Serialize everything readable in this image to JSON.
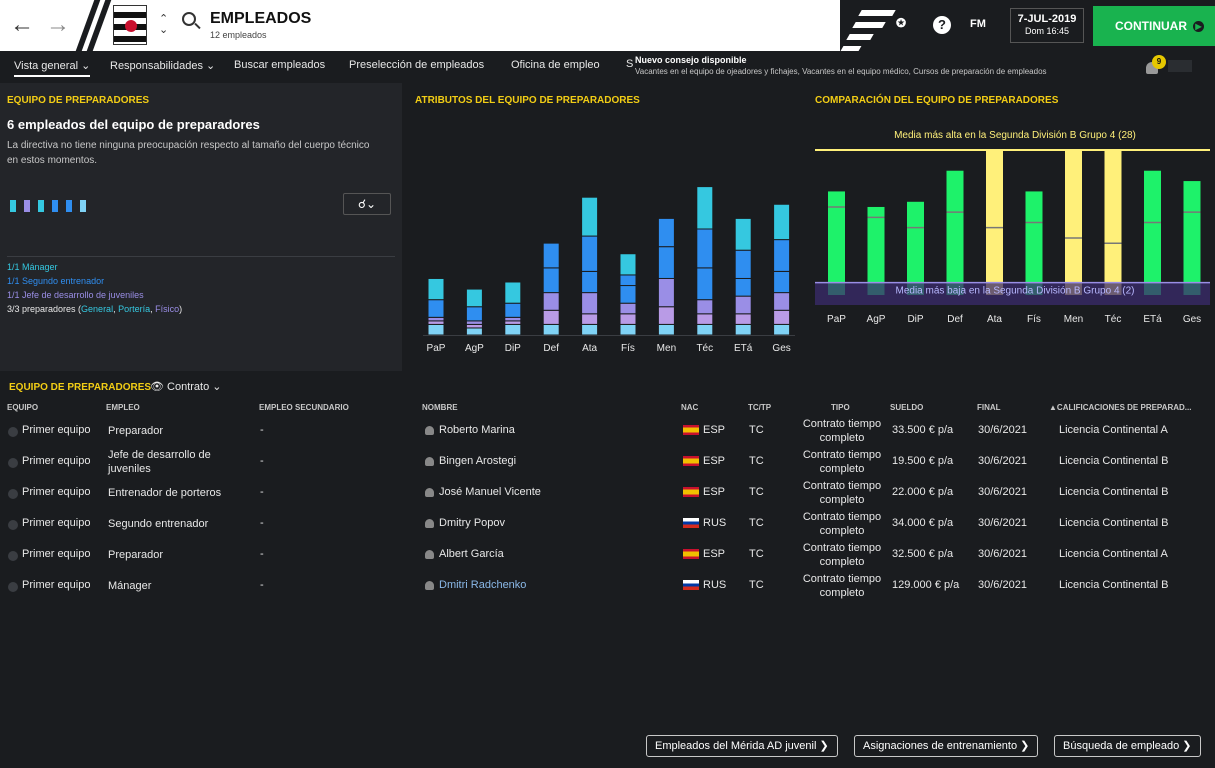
{
  "header": {
    "title": "EMPLEADOS",
    "subtitle": "12 empleados",
    "date": "7-JUL-2019",
    "time": "Dom 16:45",
    "fm_label": "FM",
    "continue_label": "CONTINUAR"
  },
  "tabs": [
    {
      "label": "Vista general",
      "dropdown": true
    },
    {
      "label": "Responsabilidades",
      "dropdown": true
    },
    {
      "label": "Buscar empleados"
    },
    {
      "label": "Preselección de empleados"
    },
    {
      "label": "Oficina de empleo"
    },
    {
      "label": "S"
    }
  ],
  "tip": {
    "title": "Nuevo consejo disponible",
    "text": "Vacantes en el equipo de ojeadores y fichajes, Vacantes en el equipo médico, Cursos de preparación de empleados",
    "count": "9"
  },
  "staff_panel": {
    "heading": "EQUIPO DE PREPARADORES",
    "title": "6 empleados del equipo de preparadores",
    "description": "La directiva no tiene ninguna preocupación respecto al tamaño del cuerpo técnico en estos momentos.",
    "person_colors": [
      "#35c8e0",
      "#9a8ee6",
      "#35c8e0",
      "#2f8ef0",
      "#2f8ef0",
      "#7fd2f5"
    ],
    "roles": [
      {
        "text": "1/1 Mánager",
        "color": "#35c8e0"
      },
      {
        "text": "1/1 Segundo entrenador",
        "color": "#2f8ef0"
      },
      {
        "text": "1/1 Jefe de desarrollo de juveniles",
        "color": "#9a8ee6"
      }
    ],
    "prep_prefix": "3/3 preparadores (",
    "prep_general": "General",
    "prep_sep1": ", ",
    "prep_portero": "Portería",
    "prep_sep2": ", ",
    "prep_fisico": "Físico",
    "prep_suffix": ")"
  },
  "chart_data": [
    {
      "type": "bar",
      "stacked": true,
      "title": "ATRIBUTOS DEL EQUIPO DE PREPARADORES",
      "categories": [
        "PaP",
        "AgP",
        "DiP",
        "Def",
        "Ata",
        "Fís",
        "Men",
        "Téc",
        "ETá",
        "Ges"
      ],
      "series": [
        {
          "color": "#7fd2f5",
          "values": [
            3,
            2,
            3,
            3,
            3,
            3,
            3,
            3,
            3,
            3
          ]
        },
        {
          "color": "#b99be6",
          "values": [
            1,
            1,
            1,
            4,
            3,
            3,
            5,
            3,
            3,
            4
          ]
        },
        {
          "color": "#9a8ee6",
          "values": [
            1,
            1,
            1,
            5,
            6,
            3,
            8,
            4,
            5,
            5
          ]
        },
        {
          "color": "#2f8ef0",
          "values": [
            5,
            4,
            4,
            7,
            6,
            5,
            9,
            9,
            5,
            6
          ]
        },
        {
          "color": "#2f8ef0",
          "values": [
            0,
            0,
            0,
            7,
            10,
            3,
            8,
            11,
            8,
            9
          ]
        },
        {
          "color": "#35c8e0",
          "values": [
            6,
            5,
            6,
            0,
            11,
            6,
            0,
            12,
            9,
            10
          ]
        }
      ],
      "ylim": [
        0,
        60
      ]
    },
    {
      "type": "bar",
      "title": "COMPARACIÓN DEL EQUIPO DE PREPARADORES",
      "categories": [
        "PaP",
        "AgP",
        "DiP",
        "Def",
        "Ata",
        "Fís",
        "Men",
        "Téc",
        "ETá",
        "Ges"
      ],
      "values": [
        20,
        17,
        18,
        24,
        28,
        20,
        28,
        28,
        24,
        22
      ],
      "highlight_color": "#fff07a",
      "bar_color": "#1ef26a",
      "highlighted": [
        "Ata",
        "Men",
        "Téc"
      ],
      "averages": [
        17,
        15,
        13,
        16,
        13,
        14,
        11,
        10,
        14,
        16
      ],
      "max_label": "Media más alta en la Segunda División B Grupo 4 (28)",
      "max_value": 28,
      "min_label": "Media más baja en la Segunda División B Grupo 4 (2)",
      "min_value": 2,
      "ylim": [
        0,
        28
      ]
    }
  ],
  "table": {
    "heading": "EQUIPO DE PREPARADORES",
    "view_label": "Contrato",
    "columns": {
      "equipo": "EQUIPO",
      "empleo": "EMPLEO",
      "secundario": "EMPLEO SECUNDARIO",
      "nombre": "NOMBRE",
      "nac": "NAC",
      "tctp": "TC/TP",
      "tipo": "TIPO",
      "sueldo": "SUELDO",
      "final": "FINAL",
      "calif": "▲CALIFICACIONES DE PREPARAD..."
    },
    "rows": [
      {
        "equipo": "Primer equipo",
        "empleo": "Preparador",
        "secundario": "-",
        "nombre": "Roberto Marina",
        "nac": "ESP",
        "tctp": "TC",
        "tipo": "Contrato tiempo completo",
        "sueldo": "33.500 € p/a",
        "final": "30/6/2021",
        "calif": "Licencia Continental A"
      },
      {
        "equipo": "Primer equipo",
        "empleo": "Jefe de desarrollo de juveniles",
        "secundario": "-",
        "nombre": "Bingen Arostegi",
        "nac": "ESP",
        "tctp": "TC",
        "tipo": "Contrato tiempo completo",
        "sueldo": "19.500 € p/a",
        "final": "30/6/2021",
        "calif": "Licencia Continental B"
      },
      {
        "equipo": "Primer equipo",
        "empleo": "Entrenador de porteros",
        "secundario": "-",
        "nombre": "José Manuel Vicente",
        "nac": "ESP",
        "tctp": "TC",
        "tipo": "Contrato tiempo completo",
        "sueldo": "22.000 € p/a",
        "final": "30/6/2021",
        "calif": "Licencia Continental B"
      },
      {
        "equipo": "Primer equipo",
        "empleo": "Segundo entrenador",
        "secundario": "-",
        "nombre": "Dmitry Popov",
        "nac": "RUS",
        "tctp": "TC",
        "tipo": "Contrato tiempo completo",
        "sueldo": "34.000 € p/a",
        "final": "30/6/2021",
        "calif": "Licencia Continental B"
      },
      {
        "equipo": "Primer equipo",
        "empleo": "Preparador",
        "secundario": "-",
        "nombre": "Albert García",
        "nac": "ESP",
        "tctp": "TC",
        "tipo": "Contrato tiempo completo",
        "sueldo": "32.500 € p/a",
        "final": "30/6/2021",
        "calif": "Licencia Continental A"
      },
      {
        "equipo": "Primer equipo",
        "empleo": "Mánager",
        "secundario": "-",
        "nombre": "Dmitri Radchenko",
        "nac": "RUS",
        "tctp": "TC",
        "tipo": "Contrato tiempo completo",
        "sueldo": "129.000 € p/a",
        "final": "30/6/2021",
        "calif": "Licencia Continental B",
        "highlight": true
      }
    ]
  },
  "footer_buttons": [
    {
      "label": "Empleados del Mérida AD juvenil"
    },
    {
      "label": "Asignaciones de entrenamiento"
    },
    {
      "label": "Búsqueda de empleado"
    }
  ]
}
